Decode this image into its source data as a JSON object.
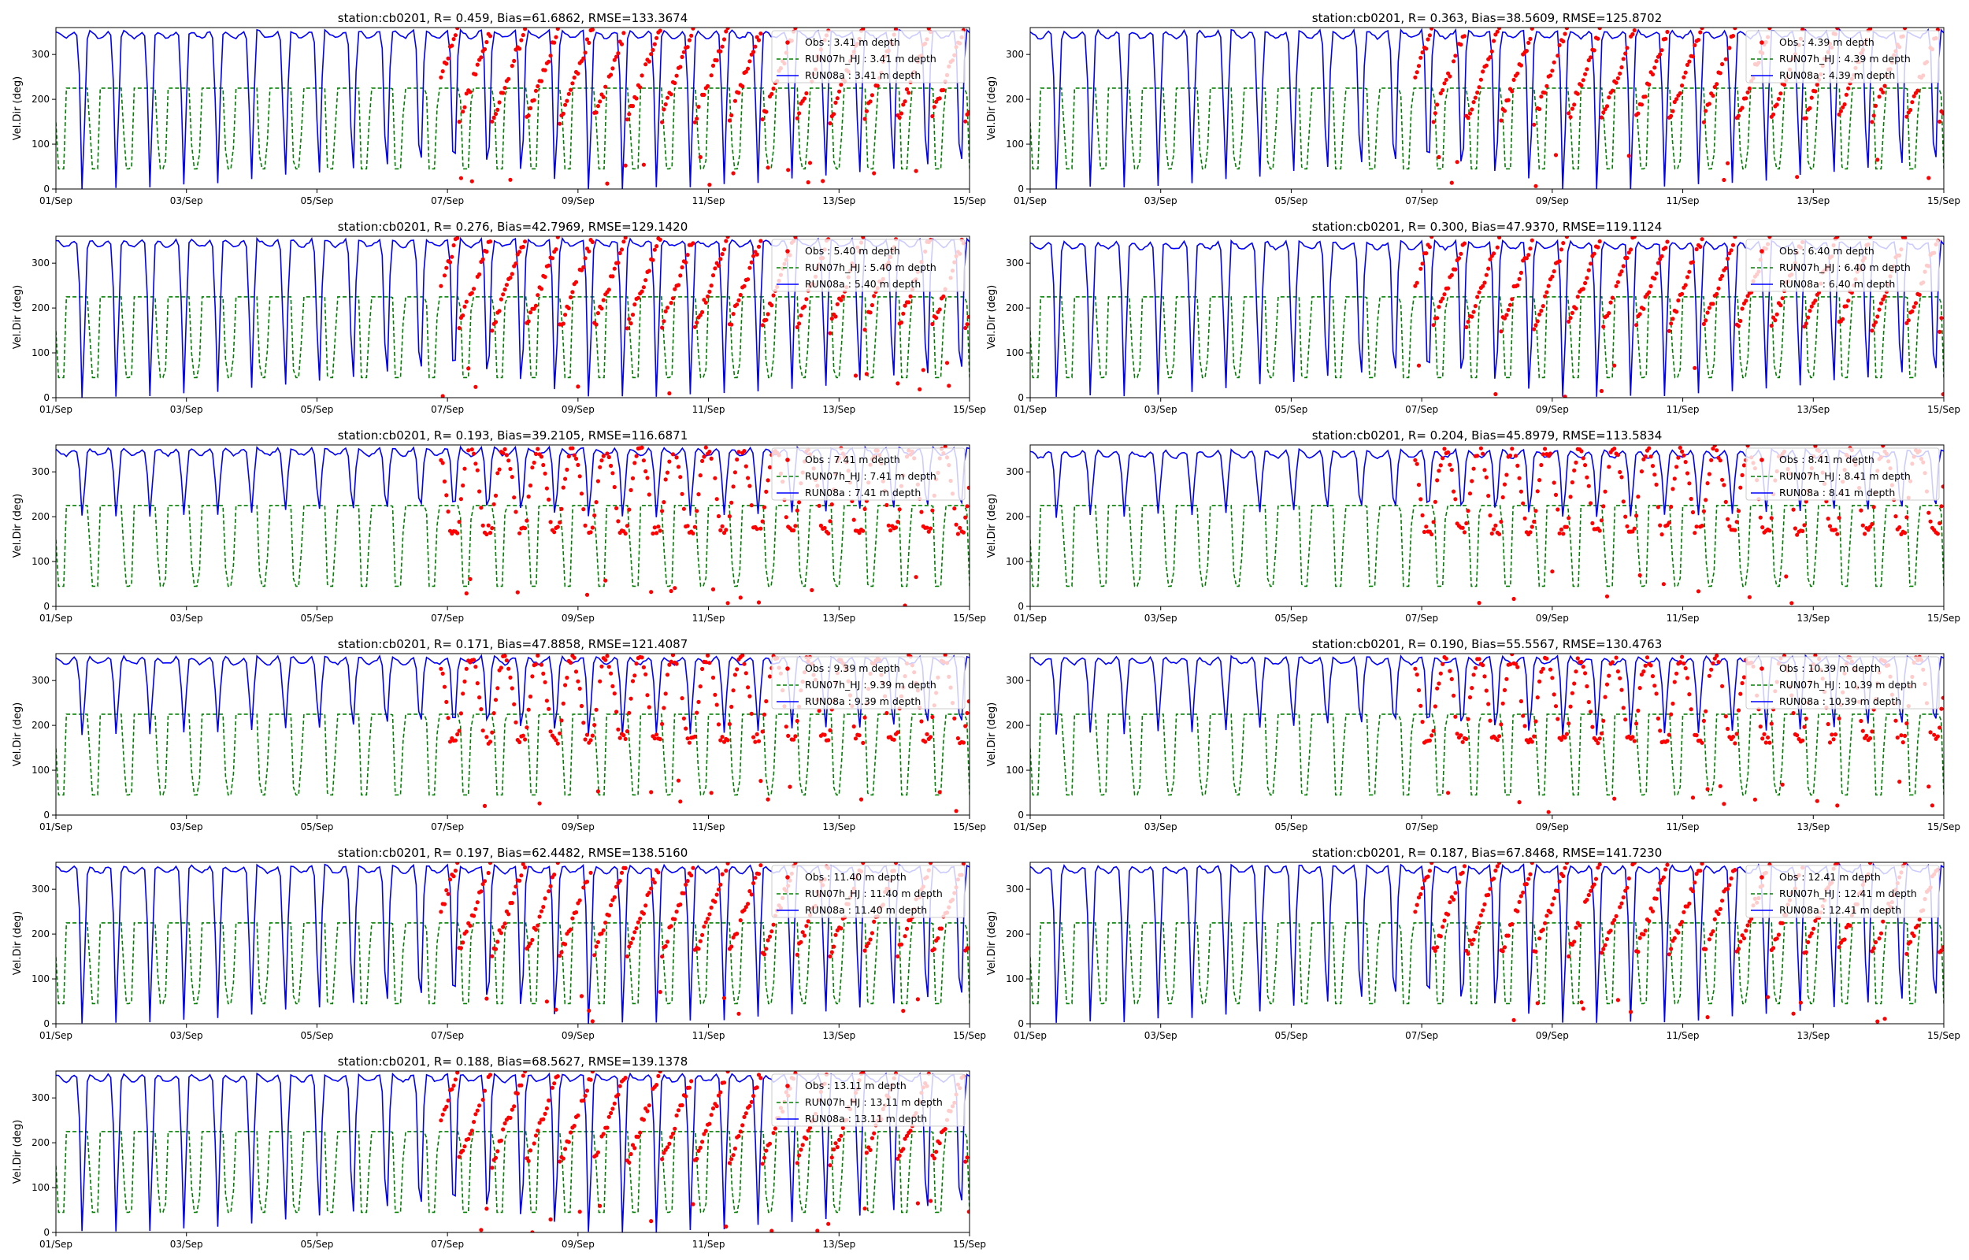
{
  "figure": {
    "ylabel": "Vel.Dir (deg)",
    "x_ticks": [
      "01/Sep",
      "03/Sep",
      "05/Sep",
      "07/Sep",
      "09/Sep",
      "11/Sep",
      "13/Sep",
      "15/Sep"
    ],
    "y_ticks": [
      "0",
      "100",
      "200",
      "300"
    ],
    "colors": {
      "obs": "#ff0000",
      "run07": "#008000",
      "run08": "#0000ff",
      "axis": "#000000"
    }
  },
  "chart_data": [
    {
      "type": "line",
      "title": "station:cb0201, R= 0.459, Bias=61.6862, RMSE=133.3674",
      "depth": 3.41,
      "xlabel": "",
      "ylabel": "Vel.Dir (deg)",
      "xlim": [
        0,
        14
      ],
      "ylim": [
        0,
        360
      ],
      "obs_start_day": 5.9,
      "run08_min": 0,
      "run08_base": 345,
      "legend": [
        "Obs : 3.41 m depth",
        "RUN07h_HJ : 3.41 m depth",
        "RUN08a : 3.41 m depth"
      ]
    },
    {
      "type": "line",
      "title": "station:cb0201, R= 0.363, Bias=38.5609, RMSE=125.8702",
      "depth": 4.39,
      "xlabel": "",
      "ylabel": "Vel.Dir (deg)",
      "xlim": [
        0,
        14
      ],
      "ylim": [
        0,
        360
      ],
      "obs_start_day": 5.9,
      "run08_min": 0,
      "run08_base": 345,
      "legend": [
        "Obs : 4.39 m depth",
        "RUN07h_HJ : 4.39 m depth",
        "RUN08a : 4.39 m depth"
      ]
    },
    {
      "type": "line",
      "title": "station:cb0201, R= 0.276, Bias=42.7969, RMSE=129.1420",
      "depth": 5.4,
      "xlabel": "",
      "ylabel": "Vel.Dir (deg)",
      "xlim": [
        0,
        14
      ],
      "ylim": [
        0,
        360
      ],
      "obs_start_day": 5.9,
      "run08_min": 0,
      "run08_base": 345,
      "legend": [
        "Obs : 5.40 m depth",
        "RUN07h_HJ : 5.40 m depth",
        "RUN08a : 5.40 m depth"
      ]
    },
    {
      "type": "line",
      "title": "station:cb0201, R= 0.300, Bias=47.9370, RMSE=119.1124",
      "depth": 6.4,
      "xlabel": "",
      "ylabel": "Vel.Dir (deg)",
      "xlim": [
        0,
        14
      ],
      "ylim": [
        0,
        360
      ],
      "obs_start_day": 5.9,
      "run08_min": 0,
      "run08_base": 340,
      "legend": [
        "Obs : 6.40 m depth",
        "RUN07h_HJ : 6.40 m depth",
        "RUN08a : 6.40 m depth"
      ]
    },
    {
      "type": "line",
      "title": "station:cb0201, R= 0.193, Bias=39.2105, RMSE=116.6871",
      "depth": 7.41,
      "xlabel": "",
      "ylabel": "Vel.Dir (deg)",
      "xlim": [
        0,
        14
      ],
      "ylim": [
        0,
        360
      ],
      "obs_start_day": 5.9,
      "run08_min": 200,
      "run08_base": 345,
      "legend": [
        "Obs : 7.41 m depth",
        "RUN07h_HJ : 7.41 m depth",
        "RUN08a : 7.41 m depth"
      ]
    },
    {
      "type": "line",
      "title": "station:cb0201, R= 0.204, Bias=45.8979, RMSE=113.5834",
      "depth": 8.41,
      "xlabel": "",
      "ylabel": "Vel.Dir (deg)",
      "xlim": [
        0,
        14
      ],
      "ylim": [
        0,
        360
      ],
      "obs_start_day": 5.9,
      "run08_min": 200,
      "run08_base": 340,
      "legend": [
        "Obs : 8.41 m depth",
        "RUN07h_HJ : 8.41 m depth",
        "RUN08a : 8.41 m depth"
      ]
    },
    {
      "type": "line",
      "title": "station:cb0201, R= 0.171, Bias=47.8858, RMSE=121.4087",
      "depth": 9.39,
      "xlabel": "",
      "ylabel": "Vel.Dir (deg)",
      "xlim": [
        0,
        14
      ],
      "ylim": [
        0,
        360
      ],
      "obs_start_day": 5.9,
      "run08_min": 180,
      "run08_base": 345,
      "legend": [
        "Obs : 9.39 m depth",
        "RUN07h_HJ : 9.39 m depth",
        "RUN08a : 9.39 m depth"
      ]
    },
    {
      "type": "line",
      "title": "station:cb0201, R= 0.190, Bias=55.5567, RMSE=130.4763",
      "depth": 10.39,
      "xlabel": "",
      "ylabel": "Vel.Dir (deg)",
      "xlim": [
        0,
        14
      ],
      "ylim": [
        0,
        360
      ],
      "obs_start_day": 5.9,
      "run08_min": 180,
      "run08_base": 345,
      "legend": [
        "Obs : 10.39 m depth",
        "RUN07h_HJ : 10.39 m depth",
        "RUN08a : 10.39 m depth"
      ]
    },
    {
      "type": "line",
      "title": "station:cb0201, R= 0.197, Bias=62.4482, RMSE=138.5160",
      "depth": 11.4,
      "xlabel": "",
      "ylabel": "Vel.Dir (deg)",
      "xlim": [
        0,
        14
      ],
      "ylim": [
        0,
        360
      ],
      "obs_start_day": 5.9,
      "run08_min": 0,
      "run08_base": 345,
      "legend": [
        "Obs : 11.40 m depth",
        "RUN07h_HJ : 11.40 m depth",
        "RUN08a : 11.40 m depth"
      ]
    },
    {
      "type": "line",
      "title": "station:cb0201, R= 0.187, Bias=67.8468, RMSE=141.7230",
      "depth": 12.41,
      "xlabel": "",
      "ylabel": "Vel.Dir (deg)",
      "xlim": [
        0,
        14
      ],
      "ylim": [
        0,
        360
      ],
      "obs_start_day": 5.9,
      "run08_min": 0,
      "run08_base": 345,
      "legend": [
        "Obs : 12.41 m depth",
        "RUN07h_HJ : 12.41 m depth",
        "RUN08a : 12.41 m depth"
      ]
    },
    {
      "type": "line",
      "title": "station:cb0201, R= 0.188, Bias=68.5627, RMSE=139.1378",
      "depth": 13.11,
      "xlabel": "",
      "ylabel": "Vel.Dir (deg)",
      "xlim": [
        0,
        14
      ],
      "ylim": [
        0,
        360
      ],
      "obs_start_day": 5.9,
      "run08_min": 0,
      "run08_base": 345,
      "legend": [
        "Obs : 13.11 m depth",
        "RUN07h_HJ : 13.11 m depth",
        "RUN08a : 13.11 m depth"
      ]
    }
  ]
}
